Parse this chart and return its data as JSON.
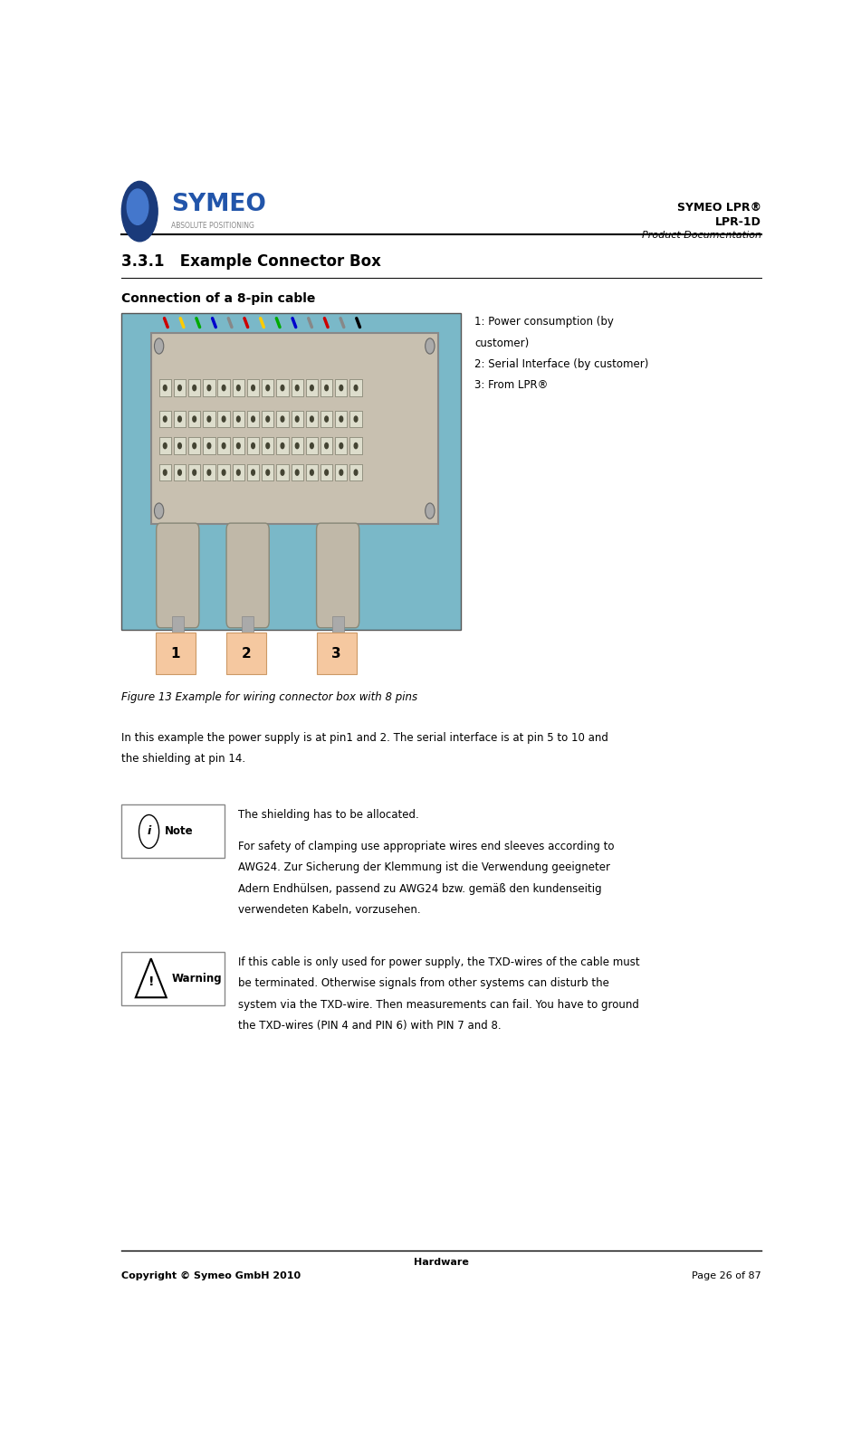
{
  "page_width": 9.51,
  "page_height": 15.98,
  "bg_color": "#ffffff",
  "header": {
    "right_line1": "SYMEO LPR®",
    "right_line2": "LPR-1D",
    "right_line3": "Product Documentation"
  },
  "footer": {
    "center_text": "Hardware",
    "left_text": "Copyright © Symeo GmbH 2010",
    "right_text": "Page 26 of 87"
  },
  "section_title": "3.3.1   Example Connector Box",
  "subsection_title": "Connection of a 8-pin cable",
  "legend_lines": [
    "1: Power consumption (by",
    "customer)",
    "2: Serial Interface (by customer)",
    "3: From LPR®"
  ],
  "figure_caption": "Figure 13 Example for wiring connector box with 8 pins",
  "body_text1_line1": "In this example the power supply is at pin1 and 2. The serial interface is at pin 5 to 10 and",
  "body_text1_line2": "the shielding at pin 14.",
  "note_text": "The shielding has to be allocated.",
  "note_para2_line1": "For safety of clamping use appropriate wires end sleeves according to",
  "note_para2_line2": "AWG24. Zur Sicherung der Klemmung ist die Verwendung geeigneter",
  "note_para2_line3": "Adern Endhülsen, passend zu AWG24 bzw. gemäß den kundenseitig",
  "note_para2_line4": "verwendeten Kabeln, vorzusehen.",
  "warning_line1": "If this cable is only used for power supply, the TXD-wires of the cable must",
  "warning_line2": "be terminated. Otherwise signals from other systems can disturb the",
  "warning_line3": "system via the TXD-wire. Then measurements can fail. You have to ground",
  "warning_line4": "the TXD-wires (PIN 4 and PIN 6) with PIN 7 and 8.",
  "pin_labels": [
    "1",
    "2",
    "3"
  ],
  "pin_color": "#f5c8a0",
  "pin_border_color": "#cc9966",
  "connector_box_bg": "#7ab8c8",
  "housing_color": "#c8c0b0",
  "housing_border": "#888888",
  "wire_colors": [
    "#cc0000",
    "#ffcc00",
    "#00aa00",
    "#0000cc",
    "#888888",
    "#cc0000",
    "#ffcc00",
    "#00aa00",
    "#0000cc",
    "#888888",
    "#cc0000",
    "#888888",
    "#000000"
  ],
  "header_logo_circle_outer": "#1a3a7a",
  "header_logo_circle_inner": "#4477cc",
  "header_symeo_color": "#2255aa",
  "header_sub_color": "#888888"
}
